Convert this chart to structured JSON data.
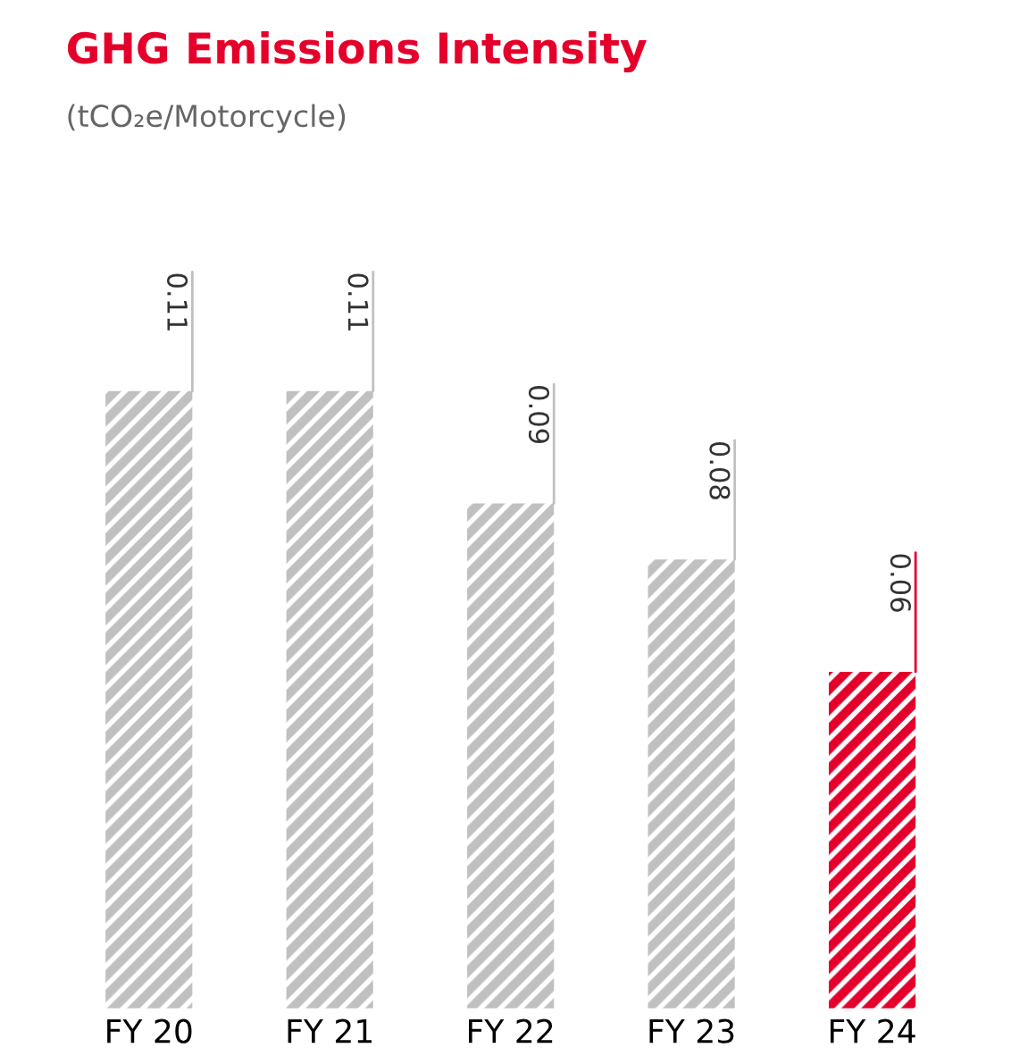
{
  "chart_data": {
    "type": "bar",
    "title": "GHG Emissions Intensity",
    "subtitle": "(tCO₂e/Motorcycle)",
    "categories": [
      "FY 20",
      "FY 21",
      "FY 22",
      "FY 23",
      "FY 24"
    ],
    "values": [
      0.11,
      0.11,
      0.09,
      0.08,
      0.06
    ],
    "colors": [
      "#c0c0c0",
      "#c0c0c0",
      "#c0c0c0",
      "#c0c0c0",
      "#e4002b"
    ],
    "data_labels": true,
    "grid": false,
    "legend": false,
    "tick_labels": "x"
  }
}
